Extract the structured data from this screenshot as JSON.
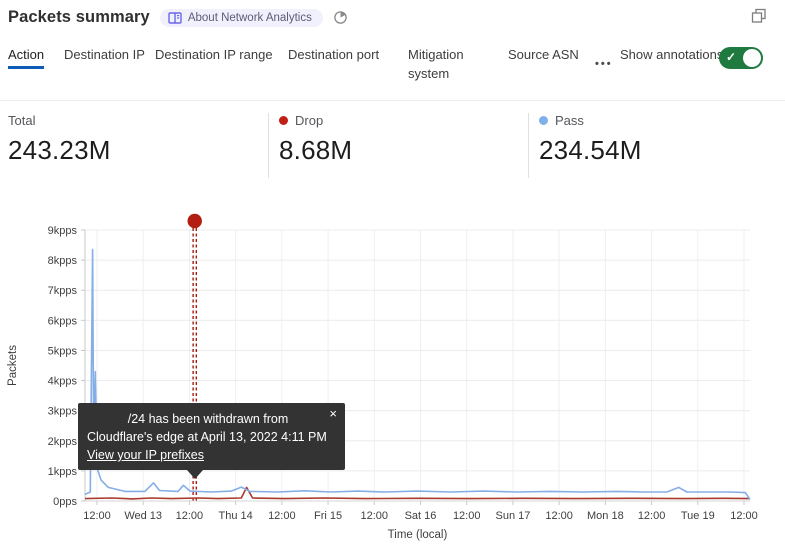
{
  "header": {
    "title": "Packets summary",
    "about_label": "About Network Analytics",
    "close_glyph": "×"
  },
  "tabs": [
    {
      "label": "Action",
      "active": true
    },
    {
      "label": "Destination IP",
      "active": false
    },
    {
      "label": "Destination IP range",
      "active": false
    },
    {
      "label": "Destination port",
      "active": false
    },
    {
      "label": "Mitigation system",
      "active": false
    },
    {
      "label": "Source ASN",
      "active": false
    }
  ],
  "more_menu": "•••",
  "annotations_toggle": {
    "label": "Show annotations",
    "state": "on"
  },
  "stats": [
    {
      "label": "Total",
      "value": "243.23M",
      "dot_color": null
    },
    {
      "label": "Drop",
      "value": "8.68M",
      "dot_color": "#c11e16"
    },
    {
      "label": "Pass",
      "value": "234.54M",
      "dot_color": "#7fb0ea"
    }
  ],
  "tooltip": {
    "line1": "/24 has been withdrawn from",
    "line2": "Cloudflare's edge at April 13, 2022 4:11 PM",
    "link": "View your IP prefixes",
    "close_glyph": "×"
  },
  "chart_data": {
    "type": "line",
    "title": "",
    "xlabel": "Time (local)",
    "ylabel": "Packets",
    "ylim": [
      0,
      9
    ],
    "y_unit": "kpps",
    "ytick_labels": [
      "0pps",
      "1kpps",
      "2kpps",
      "3kpps",
      "4kpps",
      "5kpps",
      "6kpps",
      "7kpps",
      "8kpps",
      "9kpps"
    ],
    "xtick_labels": [
      "12:00",
      "Wed 13",
      "12:00",
      "Thu 14",
      "12:00",
      "Fri 15",
      "12:00",
      "Sat 16",
      "12:00",
      "Sun 17",
      "12:00",
      "Mon 18",
      "12:00",
      "Tue 19",
      "12:00"
    ],
    "grid": true,
    "legend_position": "top (stat tiles)",
    "series": [
      {
        "name": "Pass",
        "color": "#85aee6",
        "points": [
          [
            0,
            0.22
          ],
          [
            0.008,
            0.3
          ],
          [
            0.0115,
            8.35
          ],
          [
            0.013,
            2.2
          ],
          [
            0.0155,
            4.3
          ],
          [
            0.018,
            1.1
          ],
          [
            0.024,
            0.7
          ],
          [
            0.035,
            0.45
          ],
          [
            0.06,
            0.32
          ],
          [
            0.09,
            0.32
          ],
          [
            0.103,
            0.6
          ],
          [
            0.112,
            0.35
          ],
          [
            0.14,
            0.32
          ],
          [
            0.148,
            0.52
          ],
          [
            0.158,
            0.33
          ],
          [
            0.19,
            0.3
          ],
          [
            0.22,
            0.33
          ],
          [
            0.235,
            0.46
          ],
          [
            0.248,
            0.32
          ],
          [
            0.29,
            0.3
          ],
          [
            0.33,
            0.34
          ],
          [
            0.37,
            0.3
          ],
          [
            0.41,
            0.33
          ],
          [
            0.45,
            0.3
          ],
          [
            0.5,
            0.33
          ],
          [
            0.55,
            0.3
          ],
          [
            0.6,
            0.33
          ],
          [
            0.65,
            0.3
          ],
          [
            0.7,
            0.32
          ],
          [
            0.75,
            0.3
          ],
          [
            0.8,
            0.32
          ],
          [
            0.84,
            0.3
          ],
          [
            0.875,
            0.3
          ],
          [
            0.893,
            0.45
          ],
          [
            0.905,
            0.3
          ],
          [
            0.94,
            0.3
          ],
          [
            0.97,
            0.3
          ],
          [
            0.993,
            0.28
          ],
          [
            1,
            0.05
          ]
        ]
      },
      {
        "name": "Drop",
        "color": "#a93a2d",
        "points": [
          [
            0,
            0.08
          ],
          [
            0.04,
            0.1
          ],
          [
            0.07,
            0.07
          ],
          [
            0.1,
            0.1
          ],
          [
            0.13,
            0.08
          ],
          [
            0.17,
            0.1
          ],
          [
            0.2,
            0.08
          ],
          [
            0.235,
            0.1
          ],
          [
            0.243,
            0.45
          ],
          [
            0.252,
            0.1
          ],
          [
            0.3,
            0.08
          ],
          [
            0.36,
            0.1
          ],
          [
            0.42,
            0.08
          ],
          [
            0.5,
            0.09
          ],
          [
            0.58,
            0.08
          ],
          [
            0.66,
            0.09
          ],
          [
            0.74,
            0.08
          ],
          [
            0.82,
            0.09
          ],
          [
            0.9,
            0.08
          ],
          [
            0.96,
            0.09
          ],
          [
            1,
            0.08
          ]
        ]
      }
    ],
    "annotation": {
      "x_fraction": 0.165,
      "marker_color": "#b41d12",
      "line_color": "#a31c10"
    }
  },
  "colors": {
    "active_tab_underline": "#0d5cb8",
    "toggle_on": "#1f7a3f",
    "badge_bg": "#f1f0fd",
    "badge_icon": "#6a66e8",
    "tooltip_bg": "#333333"
  }
}
